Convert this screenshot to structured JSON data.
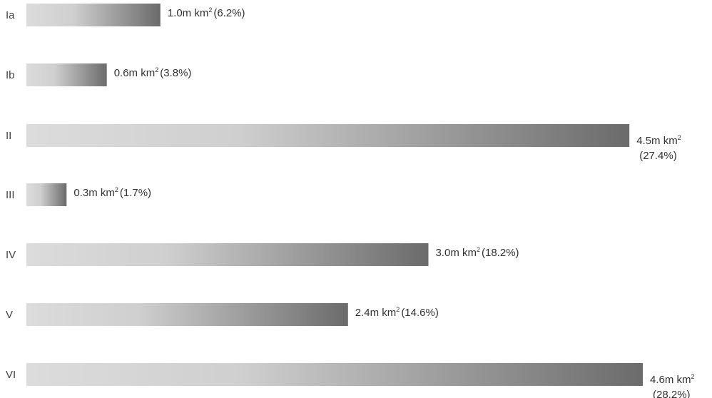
{
  "chart_data": {
    "type": "bar",
    "orientation": "horizontal",
    "categories": [
      "Ia",
      "Ib",
      "II",
      "III",
      "IV",
      "V",
      "VI"
    ],
    "values": [
      1.0,
      0.6,
      4.5,
      0.3,
      3.0,
      2.4,
      4.6
    ],
    "percentages": [
      6.2,
      3.8,
      27.4,
      1.7,
      18.2,
      14.6,
      28.2
    ],
    "value_labels": [
      "1.0m km2 (6.2%)",
      "0.6m km2 (3.8%)",
      "4.5m km2 (27.4%)",
      "0.3m km2 (1.7%)",
      "3.0m km2 (18.2%)",
      "2.4m km2 (14.6%)",
      "4.6m km2 (28.2%)"
    ],
    "label_parts": [
      {
        "num": "1.0m km",
        "sup": "2",
        "pct": "(6.2%)"
      },
      {
        "num": "0.6m km",
        "sup": "2",
        "pct": "(3.8%)"
      },
      {
        "num": "4.5m km",
        "sup": "2",
        "pct": "(27.4%)"
      },
      {
        "num": "0.3m km",
        "sup": "2",
        "pct": "(1.7%)"
      },
      {
        "num": "3.0m km",
        "sup": "2",
        "pct": "(18.2%)"
      },
      {
        "num": "2.4m km",
        "sup": "2",
        "pct": "(14.6%)"
      },
      {
        "num": "4.6m km",
        "sup": "2",
        "pct": "(28.2%)"
      }
    ],
    "wrapped_label": [
      false,
      false,
      true,
      false,
      false,
      false,
      true
    ],
    "xlim": [
      0,
      4.6
    ],
    "title": "",
    "xlabel": "",
    "ylabel": "",
    "grid": false,
    "bar_gradient": [
      "#dcdcdc",
      "#cfcfcf",
      "#6b6b6b"
    ]
  }
}
